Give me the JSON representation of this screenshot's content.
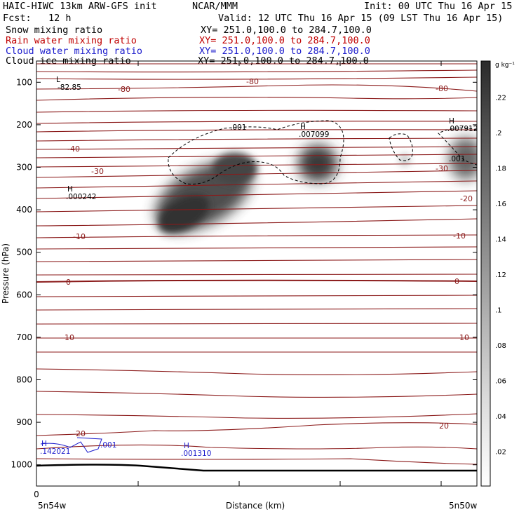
{
  "header": {
    "title_left": "HAIC-HIWC 13km ARW-GFS init",
    "title_center": "NCAR/MMM",
    "init": "Init: 00 UTC Thu 16 Apr 15",
    "fcst": "Fcst:   12 h",
    "valid": "Valid: 12 UTC Thu 16 Apr 15 (09 LST Thu 16 Apr 15)",
    "fields": [
      {
        "name": "Snow mixing ratio",
        "xy": "XY= 251.0,100.0 to 284.7,100.0",
        "color": "#000000"
      },
      {
        "name": "Rain water mixing ratio",
        "xy": "XY= 251.0,100.0 to 284.7,100.0",
        "color": "#c00000"
      },
      {
        "name": "Cloud water mixing ratio",
        "xy": "XY= 251.0,100.0 to 284.7,100.0",
        "color": "#1a1acc"
      },
      {
        "name": "Cloud ice mixing ratio",
        "xy": "XY= 251.0,100.0 to 284.7,100.0",
        "color": "#000000"
      }
    ]
  },
  "chart_data": {
    "type": "cross-section",
    "ylabel": "Pressure (hPa)",
    "xlabel": "Distance (km)",
    "ylim": [
      1050,
      50
    ],
    "y_ticks": [
      100,
      200,
      300,
      400,
      500,
      600,
      700,
      800,
      900,
      1000
    ],
    "x_tick_zero": "0",
    "x_left_label": "5n54w",
    "x_right_label": "5n50w",
    "colorbar": {
      "unit": "g kg⁻¹",
      "ticks": [
        ".02",
        ".04",
        ".06",
        ".08",
        ".1",
        ".12",
        ".14",
        ".16",
        ".18",
        ".2",
        ".22"
      ]
    },
    "temperature_labels": [
      "-80",
      "-40",
      "-30",
      "-20",
      "-10",
      "0",
      "10",
      "20"
    ],
    "extrema": [
      {
        "type": "L",
        "value": "-82.85"
      },
      {
        "type": "H",
        "value": ".000242"
      },
      {
        "type": "H",
        "value": ".007099"
      },
      {
        "type": "H",
        "value": ".007912"
      },
      {
        "type": "H",
        "value": ".142021"
      },
      {
        "type": "H",
        "value": ".001310"
      }
    ],
    "contour_labels": [
      ".001",
      ".001",
      ".001"
    ],
    "colors": {
      "temperature": "#8b1a1a",
      "cloud_water": "#1a1acc",
      "ice": "#000000"
    }
  }
}
